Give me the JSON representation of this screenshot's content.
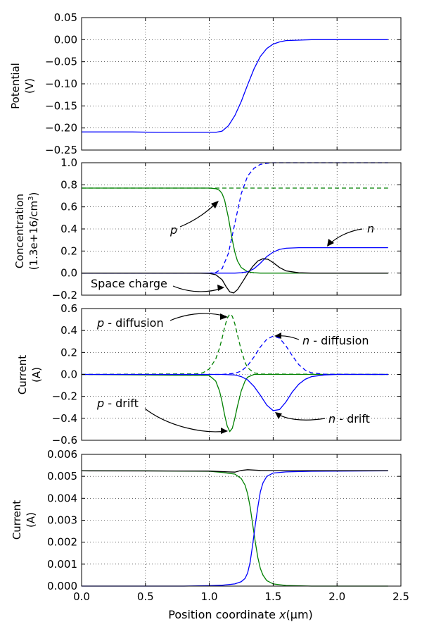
{
  "chart_data": [
    {
      "type": "line",
      "ylabel": "Potential\n(V)",
      "ylim": [
        -0.25,
        0.05
      ],
      "yticks": [
        "−0.25",
        "−0.20",
        "−0.15",
        "−0.10",
        "−0.05",
        "0.00",
        "0.05"
      ],
      "ytick_values": [
        -0.25,
        -0.2,
        -0.15,
        -0.1,
        -0.05,
        0.0,
        0.05
      ],
      "xlim": [
        0.0,
        2.5
      ],
      "grid": true,
      "series": [
        {
          "color": "#0000ff",
          "style": "solid",
          "x": [
            0,
            0.2,
            0.4,
            0.6,
            0.8,
            1.0,
            1.05,
            1.1,
            1.15,
            1.2,
            1.25,
            1.3,
            1.35,
            1.4,
            1.45,
            1.5,
            1.55,
            1.6,
            1.7,
            1.8,
            2.0,
            2.2,
            2.4
          ],
          "y": [
            -0.209,
            -0.209,
            -0.209,
            -0.21,
            -0.21,
            -0.21,
            -0.21,
            -0.207,
            -0.195,
            -0.172,
            -0.14,
            -0.102,
            -0.066,
            -0.038,
            -0.02,
            -0.01,
            -0.005,
            -0.002,
            -0.001,
            0.0,
            0.0,
            0.0,
            0.0
          ]
        }
      ]
    },
    {
      "type": "line",
      "ylabel": "Concentration\n(1.3e+16/cm³)",
      "ylim": [
        -0.2,
        1.0
      ],
      "yticks": [
        "−0.2",
        "0.0",
        "0.2",
        "0.4",
        "0.6",
        "0.8",
        "1.0"
      ],
      "ytick_values": [
        -0.2,
        0.0,
        0.2,
        0.4,
        0.6,
        0.8,
        1.0
      ],
      "xlim": [
        0.0,
        2.5
      ],
      "grid": true,
      "series": [
        {
          "color": "#008000",
          "style": "solid",
          "x": [
            0,
            0.5,
            1.0,
            1.05,
            1.08,
            1.1,
            1.12,
            1.15,
            1.18,
            1.2,
            1.22,
            1.25,
            1.3,
            1.35,
            1.4,
            1.45,
            1.5,
            1.6,
            2.4
          ],
          "y": [
            0.77,
            0.77,
            0.77,
            0.765,
            0.75,
            0.72,
            0.66,
            0.5,
            0.3,
            0.19,
            0.11,
            0.05,
            0.012,
            0.003,
            0.0,
            0.0,
            0.0,
            0.0,
            0.0
          ]
        },
        {
          "color": "#008000",
          "style": "dashed",
          "x": [
            0,
            2.4
          ],
          "y": [
            0.77,
            0.77
          ]
        },
        {
          "color": "#0000ff",
          "style": "solid",
          "x": [
            0,
            1.2,
            1.25,
            1.3,
            1.35,
            1.4,
            1.45,
            1.5,
            1.55,
            1.6,
            1.7,
            1.8,
            2.0,
            2.4
          ],
          "y": [
            0.0,
            0.0,
            0.003,
            0.012,
            0.04,
            0.09,
            0.15,
            0.19,
            0.215,
            0.225,
            0.23,
            0.23,
            0.23,
            0.23
          ]
        },
        {
          "color": "#0000ff",
          "style": "dashed",
          "x": [
            0,
            1.0,
            1.05,
            1.1,
            1.15,
            1.2,
            1.25,
            1.3,
            1.35,
            1.4,
            1.45,
            1.5,
            1.6,
            2.4
          ],
          "y": [
            0.0,
            0.0,
            0.005,
            0.04,
            0.18,
            0.45,
            0.72,
            0.88,
            0.95,
            0.985,
            0.995,
            1.0,
            1.0,
            1.0
          ]
        },
        {
          "color": "#000000",
          "style": "solid",
          "x": [
            0,
            0.9,
            1.0,
            1.05,
            1.1,
            1.13,
            1.16,
            1.19,
            1.22,
            1.26,
            1.3,
            1.34,
            1.38,
            1.42,
            1.46,
            1.5,
            1.55,
            1.6,
            1.7,
            1.8,
            2.4
          ],
          "y": [
            0.0,
            0.0,
            -0.003,
            -0.015,
            -0.06,
            -0.12,
            -0.17,
            -0.18,
            -0.15,
            -0.08,
            -0.005,
            0.06,
            0.11,
            0.13,
            0.125,
            0.095,
            0.05,
            0.02,
            0.003,
            0.0,
            0.0
          ]
        }
      ],
      "annotations": [
        {
          "text": "p",
          "italic": true
        },
        {
          "text": "n",
          "italic": true
        },
        {
          "text": "Space charge",
          "italic": false
        }
      ]
    },
    {
      "type": "line",
      "ylabel": "Current\n(A)",
      "ylim": [
        -0.6,
        0.6
      ],
      "yticks": [
        "−0.6",
        "−0.4",
        "−0.2",
        "0.0",
        "0.2",
        "0.4",
        "0.6"
      ],
      "ytick_values": [
        -0.6,
        -0.4,
        -0.2,
        0.0,
        0.2,
        0.4,
        0.6
      ],
      "xlim": [
        0.0,
        2.5
      ],
      "grid": true,
      "series": [
        {
          "color": "#008000",
          "style": "dashed",
          "x": [
            0,
            0.9,
            0.95,
            1.0,
            1.05,
            1.08,
            1.1,
            1.12,
            1.14,
            1.16,
            1.18,
            1.2,
            1.22,
            1.25,
            1.28,
            1.3,
            1.35,
            1.4,
            2.4
          ],
          "y": [
            0.0,
            0.005,
            0.015,
            0.05,
            0.14,
            0.24,
            0.33,
            0.43,
            0.51,
            0.55,
            0.53,
            0.46,
            0.36,
            0.22,
            0.11,
            0.06,
            0.015,
            0.003,
            0.0
          ]
        },
        {
          "color": "#008000",
          "style": "solid",
          "x": [
            0,
            1.0,
            1.05,
            1.08,
            1.1,
            1.12,
            1.14,
            1.16,
            1.18,
            1.2,
            1.22,
            1.25,
            1.28,
            1.3,
            1.35,
            2.4
          ],
          "y": [
            0.0,
            -0.01,
            -0.06,
            -0.15,
            -0.25,
            -0.37,
            -0.47,
            -0.52,
            -0.49,
            -0.4,
            -0.29,
            -0.15,
            -0.06,
            -0.025,
            0.0,
            0.0
          ]
        },
        {
          "color": "#0000ff",
          "style": "dashed",
          "x": [
            0,
            1.1,
            1.2,
            1.25,
            1.3,
            1.35,
            1.4,
            1.45,
            1.5,
            1.55,
            1.6,
            1.65,
            1.7,
            1.75,
            1.8,
            1.9,
            2.4
          ],
          "y": [
            0.0,
            0.0,
            0.01,
            0.03,
            0.08,
            0.16,
            0.25,
            0.32,
            0.35,
            0.33,
            0.26,
            0.17,
            0.09,
            0.04,
            0.015,
            0.002,
            0.0
          ]
        },
        {
          "color": "#0000ff",
          "style": "solid",
          "x": [
            0,
            1.1,
            1.2,
            1.25,
            1.3,
            1.35,
            1.4,
            1.45,
            1.5,
            1.55,
            1.6,
            1.65,
            1.7,
            1.75,
            1.8,
            1.9,
            2.0,
            2.4
          ],
          "y": [
            0.0,
            0.0,
            -0.005,
            -0.02,
            -0.05,
            -0.11,
            -0.19,
            -0.28,
            -0.33,
            -0.32,
            -0.25,
            -0.16,
            -0.09,
            -0.045,
            -0.02,
            -0.005,
            0.0,
            0.0
          ]
        }
      ],
      "annotations": [
        {
          "text": " - diffusion",
          "var": "p"
        },
        {
          "text": " - diffusion",
          "var": "n"
        },
        {
          "text": " - drift",
          "var": "p"
        },
        {
          "text": " - drift",
          "var": "n"
        }
      ]
    },
    {
      "type": "line",
      "ylabel": "Current\n(A)",
      "xlabel": "Position coordinate x(μm)",
      "ylim": [
        0.0,
        0.006
      ],
      "yticks": [
        "0.000",
        "0.001",
        "0.002",
        "0.003",
        "0.004",
        "0.005",
        "0.006"
      ],
      "ytick_values": [
        0.0,
        0.001,
        0.002,
        0.003,
        0.004,
        0.005,
        0.006
      ],
      "xlim": [
        0.0,
        2.5
      ],
      "xticks": [
        "0.0",
        "0.5",
        "1.0",
        "1.5",
        "2.0",
        "2.5"
      ],
      "xtick_values": [
        0.0,
        0.5,
        1.0,
        1.5,
        2.0,
        2.5
      ],
      "grid": true,
      "series": [
        {
          "color": "#008000",
          "style": "solid",
          "x": [
            0,
            0.5,
            1.0,
            1.1,
            1.15,
            1.2,
            1.25,
            1.28,
            1.3,
            1.32,
            1.34,
            1.36,
            1.38,
            1.4,
            1.42,
            1.45,
            1.5,
            1.6,
            1.8,
            2.4
          ],
          "y": [
            0.00525,
            0.00525,
            0.00523,
            0.00518,
            0.00514,
            0.0051,
            0.0049,
            0.0046,
            0.0042,
            0.0036,
            0.0028,
            0.002,
            0.0013,
            0.0008,
            0.0005,
            0.00025,
            0.0001,
            3e-05,
            0.0,
            0.0
          ]
        },
        {
          "color": "#0000ff",
          "style": "solid",
          "x": [
            0,
            0.8,
            1.0,
            1.1,
            1.2,
            1.25,
            1.28,
            1.3,
            1.32,
            1.34,
            1.36,
            1.38,
            1.4,
            1.42,
            1.45,
            1.5,
            1.6,
            1.8,
            2.4
          ],
          "y": [
            0.0,
            0.0,
            2e-05,
            4e-05,
            0.0001,
            0.0002,
            0.00035,
            0.0006,
            0.0011,
            0.0019,
            0.0028,
            0.0036,
            0.0043,
            0.0047,
            0.005,
            0.00515,
            0.0052,
            0.00523,
            0.00525
          ]
        },
        {
          "color": "#000000",
          "style": "solid",
          "x": [
            0,
            1.0,
            1.15,
            1.2,
            1.25,
            1.3,
            1.4,
            1.6,
            2.4
          ],
          "y": [
            0.00525,
            0.00524,
            0.0052,
            0.00519,
            0.00527,
            0.0053,
            0.00527,
            0.00526,
            0.00526
          ]
        }
      ]
    }
  ]
}
